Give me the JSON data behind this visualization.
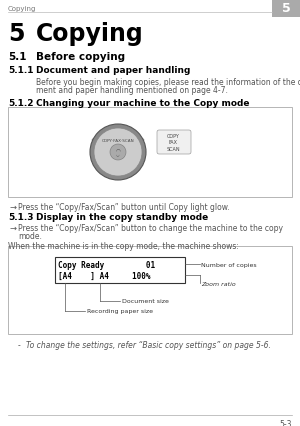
{
  "page_header_text": "Copying",
  "page_number_tab": "5",
  "chapter_number": "5",
  "chapter_title": "Copying",
  "section_511": "5.1",
  "section_511_title": "Before copying",
  "section_5111": "5.1.1",
  "section_5111_title": "Document and paper handling",
  "section_5111_body1": "Before you begin making copies, please read the information of the docu-",
  "section_5111_body2": "ment and paper handling mentioned on page 4-7.",
  "section_5112": "5.1.2",
  "section_5112_title": "Changing your machine to the Copy mode",
  "section_5112_arrow": "→",
  "section_5112_body": "Press the “Copy/Fax/Scan” button until Copy light glow.",
  "section_5113": "5.1.3",
  "section_5113_title": "Display in the copy standby mode",
  "section_5113_arrow": "→",
  "section_5113_body1": "Press the “Copy/Fax/Scan” button to change the machine to the copy",
  "section_5113_body2": "mode.",
  "section_5113_body3": "When the machine is in the copy mode, the machine shows:",
  "display_line1": "Copy Ready         01",
  "display_line2": "[A4    ] A4     100%",
  "label_copies": "Number of copies",
  "label_zoom": "Zoom ratio",
  "label_doc": "Document size",
  "label_paper": "Recording paper size",
  "bullet_dash": "-",
  "bullet_note": "To change the settings, refer “Basic copy settings” on page 5-6.",
  "footer_page": "5-3",
  "bg_color": "#ffffff"
}
